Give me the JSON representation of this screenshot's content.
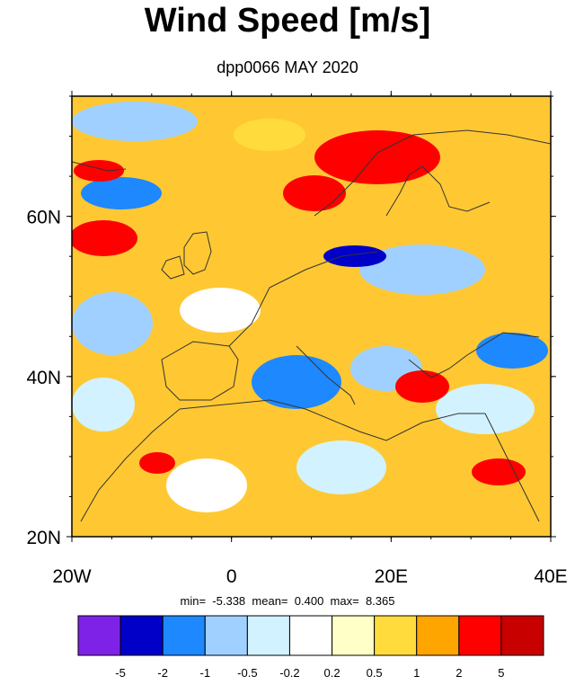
{
  "title": "Wind Speed [m/s]",
  "subtitle": "dpp0066 MAY 2020",
  "stats": {
    "min_label": "min=",
    "min": "-5.338",
    "mean_label": "mean=",
    "mean": "0.400",
    "max_label": "max=",
    "max": "8.365"
  },
  "map": {
    "lon_range": [
      -20,
      40
    ],
    "lat_range": [
      20,
      75
    ],
    "lon_ticks": [
      {
        "value": -20,
        "label": "20W"
      },
      {
        "value": 0,
        "label": "0"
      },
      {
        "value": 20,
        "label": "20E"
      },
      {
        "value": 40,
        "label": "40E"
      }
    ],
    "lat_ticks": [
      {
        "value": 20,
        "label": "20N"
      },
      {
        "value": 40,
        "label": "40N"
      },
      {
        "value": 60,
        "label": "60N"
      }
    ]
  },
  "colorbar": {
    "colors": [
      "#7f22e8",
      "#0000c8",
      "#1e88ff",
      "#a0d0ff",
      "#d2f2ff",
      "#ffffff",
      "#ffffc8",
      "#ffdc3c",
      "#ffa500",
      "#ff0000",
      "#c80000"
    ],
    "labels": [
      "-5",
      "-2",
      "-1",
      "-0.5",
      "-0.2",
      "0.2",
      "0.5",
      "1",
      "2",
      "5"
    ]
  },
  "colors": {
    "ocean": "#ffc832",
    "land": "#ffd24a",
    "coastline": "#333333"
  }
}
